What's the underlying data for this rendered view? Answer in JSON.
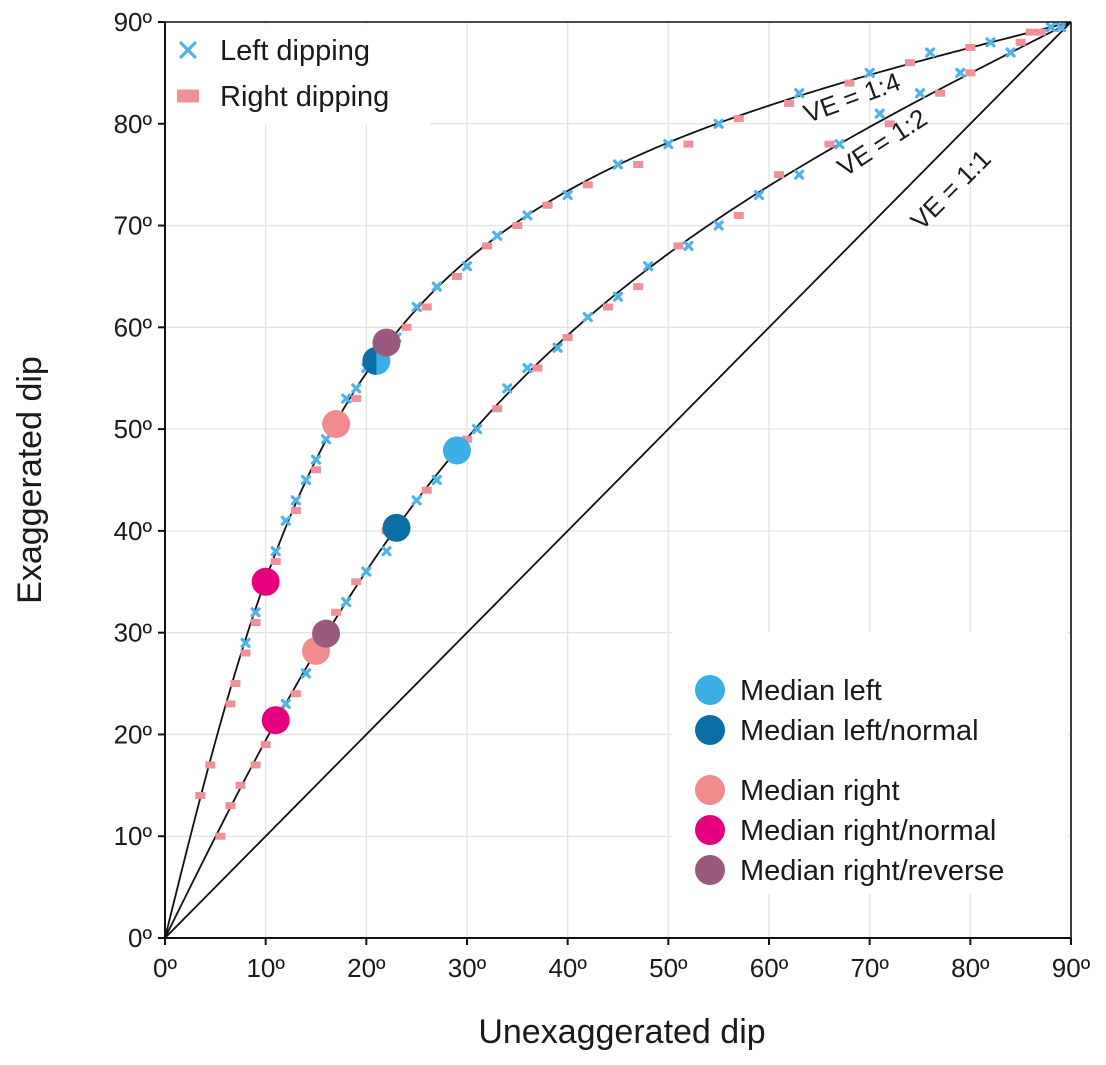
{
  "chart_data": {
    "type": "scatter",
    "xlabel": "Unexaggerated dip",
    "ylabel": "Exaggerated dip",
    "xlim": [
      0,
      90
    ],
    "ylim": [
      0,
      90
    ],
    "grid": true,
    "x_ticks": [
      "0º",
      "10º",
      "20º",
      "30º",
      "40º",
      "50º",
      "60º",
      "70º",
      "80º",
      "90º"
    ],
    "y_ticks": [
      "0º",
      "10º",
      "20º",
      "30º",
      "40º",
      "50º",
      "60º",
      "70º",
      "80º",
      "90º"
    ],
    "reference_curves": [
      {
        "label": "VE = 1:1",
        "factor": 1
      },
      {
        "label": "VE = 1:2",
        "factor": 2
      },
      {
        "label": "VE = 1:4",
        "factor": 4
      }
    ],
    "series": [
      {
        "name": "Left dipping",
        "marker": "x",
        "color": "#4fb3e8",
        "points": [
          [
            8,
            29
          ],
          [
            9,
            32
          ],
          [
            10,
            35
          ],
          [
            11,
            38
          ],
          [
            12,
            41
          ],
          [
            13,
            43
          ],
          [
            14,
            45
          ],
          [
            15,
            47
          ],
          [
            16,
            49
          ],
          [
            17,
            51
          ],
          [
            18,
            53
          ],
          [
            19,
            54
          ],
          [
            20,
            56
          ],
          [
            21,
            57
          ],
          [
            23,
            59
          ],
          [
            25,
            62
          ],
          [
            27,
            64
          ],
          [
            30,
            66
          ],
          [
            33,
            69
          ],
          [
            36,
            71
          ],
          [
            40,
            73
          ],
          [
            45,
            76
          ],
          [
            50,
            78
          ],
          [
            55,
            80
          ],
          [
            63,
            83
          ],
          [
            70,
            85
          ],
          [
            76,
            87
          ],
          [
            82,
            88
          ],
          [
            88,
            89.5
          ],
          [
            12,
            23
          ],
          [
            14,
            26
          ],
          [
            16,
            30
          ],
          [
            18,
            33
          ],
          [
            20,
            36
          ],
          [
            22,
            38
          ],
          [
            25,
            43
          ],
          [
            27,
            45
          ],
          [
            29,
            48
          ],
          [
            31,
            50
          ],
          [
            34,
            54
          ],
          [
            36,
            56
          ],
          [
            39,
            58
          ],
          [
            42,
            61
          ],
          [
            45,
            63
          ],
          [
            48,
            66
          ],
          [
            52,
            68
          ],
          [
            55,
            70
          ],
          [
            59,
            73
          ],
          [
            63,
            75
          ],
          [
            67,
            78
          ],
          [
            71,
            81
          ],
          [
            75,
            83
          ],
          [
            79,
            85
          ],
          [
            84,
            87
          ],
          [
            89,
            89.5
          ]
        ]
      },
      {
        "name": "Right dipping",
        "marker": "square",
        "color": "#f0909a",
        "points": [
          [
            3.5,
            14
          ],
          [
            4.5,
            17
          ],
          [
            6.5,
            23
          ],
          [
            7,
            25
          ],
          [
            8,
            28
          ],
          [
            9,
            31
          ],
          [
            10,
            34
          ],
          [
            11,
            37
          ],
          [
            13,
            42
          ],
          [
            15,
            46
          ],
          [
            17,
            50
          ],
          [
            19,
            53
          ],
          [
            22,
            58
          ],
          [
            24,
            60
          ],
          [
            26,
            62
          ],
          [
            29,
            65
          ],
          [
            32,
            68
          ],
          [
            35,
            70
          ],
          [
            38,
            72
          ],
          [
            42,
            74
          ],
          [
            47,
            76
          ],
          [
            52,
            78
          ],
          [
            57,
            80.5
          ],
          [
            62,
            82
          ],
          [
            68,
            84
          ],
          [
            74,
            86
          ],
          [
            80,
            87.5
          ],
          [
            86,
            89
          ],
          [
            5.5,
            10
          ],
          [
            6.5,
            13
          ],
          [
            7.5,
            15
          ],
          [
            9,
            17
          ],
          [
            10,
            19
          ],
          [
            11,
            21
          ],
          [
            13,
            24
          ],
          [
            15,
            28
          ],
          [
            17,
            32
          ],
          [
            19,
            35
          ],
          [
            22,
            40
          ],
          [
            26,
            44
          ],
          [
            30,
            49
          ],
          [
            33,
            52
          ],
          [
            37,
            56
          ],
          [
            40,
            59
          ],
          [
            44,
            62
          ],
          [
            47,
            64
          ],
          [
            51,
            68
          ],
          [
            57,
            71
          ],
          [
            61,
            75
          ],
          [
            66,
            78
          ],
          [
            72,
            80
          ],
          [
            77,
            83
          ],
          [
            80,
            85
          ],
          [
            85,
            88
          ],
          [
            87,
            89
          ]
        ]
      },
      {
        "name": "Median left",
        "marker": "dot",
        "color": "#3baee3",
        "points": [
          [
            21,
            56.7
          ],
          [
            29,
            47.9
          ]
        ]
      },
      {
        "name": "Median left/normal",
        "marker": "dot",
        "color": "#0b6fa6",
        "points": [
          [
            23,
            40.3
          ]
        ],
        "split_with": [
          [
            21,
            56.7
          ]
        ]
      },
      {
        "name": "Median right",
        "marker": "dot",
        "color": "#f08c8e",
        "points": [
          [
            17,
            50.5
          ],
          [
            15,
            28.2
          ]
        ]
      },
      {
        "name": "Median right/normal",
        "marker": "dot",
        "color": "#e5007e",
        "points": [
          [
            10,
            35
          ],
          [
            11,
            21.4
          ]
        ]
      },
      {
        "name": "Median right/reverse",
        "marker": "dot",
        "color": "#9a5a7e",
        "points": [
          [
            22,
            58.5
          ],
          [
            16,
            29.9
          ]
        ]
      }
    ],
    "legends": [
      {
        "placement": "top-left",
        "entries": [
          "Left dipping",
          "Right dipping"
        ]
      },
      {
        "placement": "bottom-right",
        "groups": [
          [
            "Median left",
            "Median left/normal"
          ],
          [
            "Median right",
            "Median right/normal",
            "Median right/reverse"
          ]
        ]
      }
    ]
  }
}
